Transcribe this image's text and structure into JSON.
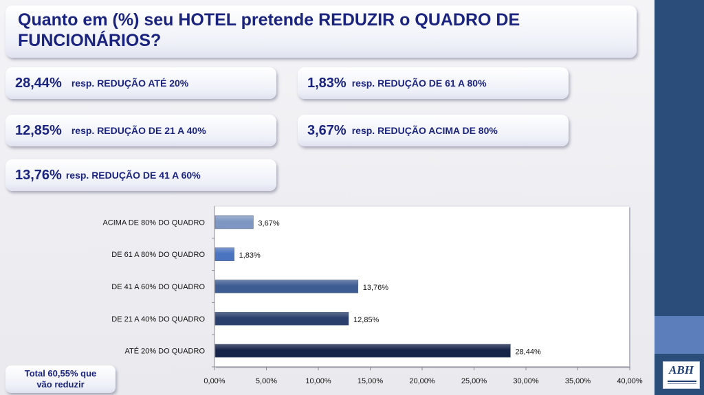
{
  "title": "Quanto em (%) seu HOTEL pretende REDUZIR o QUADRO DE FUNCIONÁRIOS?",
  "stats": [
    {
      "pct": "28,44%",
      "label": "resp. REDUÇÃO ATÉ 20%"
    },
    {
      "pct": "12,85%",
      "label": "resp. REDUÇÃO DE 21 A 40%"
    },
    {
      "pct": "13,76%",
      "label": "resp. REDUÇÃO DE 41 A 60%"
    },
    {
      "pct": "1,83%",
      "label": "resp. REDUÇÃO DE 61 A 80%"
    },
    {
      "pct": "3,67%",
      "label": "resp. REDUÇÃO ACIMA DE 80%"
    }
  ],
  "total": {
    "line1": "Total 60,55% que",
    "line2": "vão reduzir"
  },
  "logo": {
    "text": "ABH"
  },
  "colors": {
    "accent": "#1a237e",
    "band": "#2b4d7a",
    "band_light": "#5c7ebb"
  },
  "chart_data": {
    "type": "bar",
    "orientation": "horizontal",
    "categories": [
      "ATÉ 20% DO QUADRO",
      "DE 21 A 40% DO QUADRO",
      "DE 41 A 60% DO QUADRO",
      "DE 61 A 80% DO QUADRO",
      "ACIMA DE 80% DO QUADRO"
    ],
    "values": [
      28.44,
      12.85,
      13.76,
      1.83,
      3.67
    ],
    "value_labels": [
      "28,44%",
      "12,85%",
      "13,76%",
      "1,83%",
      "3,67%"
    ],
    "bar_colors": [
      "#17244a",
      "#2a3f6b",
      "#3d5c92",
      "#4a74c0",
      "#7d97c2"
    ],
    "xlim": [
      0,
      40
    ],
    "xticks": [
      "0,00%",
      "5,00%",
      "10,00%",
      "15,00%",
      "20,00%",
      "25,00%",
      "30,00%",
      "35,00%",
      "40,00%"
    ],
    "grid": false,
    "legend": "none"
  }
}
